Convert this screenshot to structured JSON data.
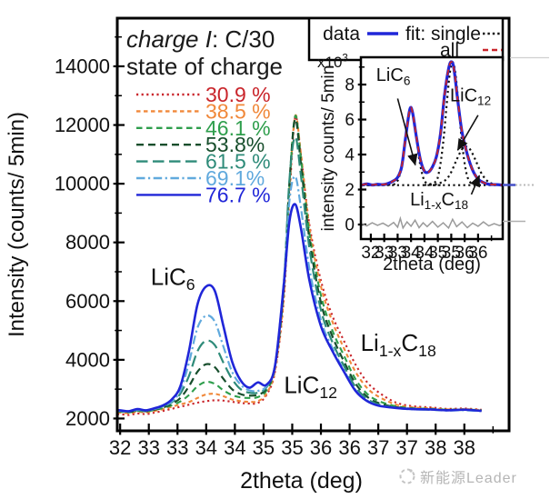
{
  "figure": {
    "watermark": {
      "logo": "dashed-circle-logo",
      "text": "新能源Leader",
      "color": "#b5b5b5"
    }
  },
  "chart_data": [
    {
      "id": "main",
      "type": "line",
      "xlabel": "2theta (deg)",
      "ylabel": "Intensity (counts/ 5min)",
      "xlim": [
        31.95,
        38.78
      ],
      "ylim": [
        1580,
        15640
      ],
      "xticks_major": [
        32,
        33,
        34,
        35,
        36,
        37,
        38
      ],
      "xtick_minor_step": 0.5,
      "yticks_major": [
        2000,
        4000,
        6000,
        8000,
        10000,
        12000,
        14000
      ],
      "ytick_minor_step": 1000,
      "grid": false,
      "legend_position": "top-left",
      "legend_title_line1": [
        {
          "t": "charge I",
          "italic": true
        },
        {
          "t": ": C/30"
        }
      ],
      "legend_title_line2": "state of charge",
      "x": [
        32.0,
        32.15,
        32.3,
        32.45,
        32.6,
        32.75,
        32.9,
        33.05,
        33.2,
        33.35,
        33.5,
        33.65,
        33.8,
        33.95,
        34.1,
        34.25,
        34.4,
        34.55,
        34.7,
        34.85,
        34.95,
        35.05,
        35.15,
        35.3,
        35.5,
        35.7,
        35.9,
        36.1,
        36.3,
        36.5,
        36.8,
        37.1,
        37.4,
        37.7,
        38.0,
        38.3
      ],
      "series": [
        {
          "name": "30.9 %",
          "soc_percent": 30.9,
          "color": "#c9252b",
          "dash": "dot",
          "width": 2.1,
          "y": [
            2150,
            2120,
            2170,
            2150,
            2200,
            2260,
            2330,
            2400,
            2470,
            2540,
            2590,
            2620,
            2610,
            2570,
            2530,
            2510,
            2530,
            2800,
            3600,
            6000,
            9500,
            12250,
            11000,
            8600,
            6700,
            5500,
            4650,
            3850,
            3250,
            2900,
            2550,
            2420,
            2380,
            2330,
            2340,
            2300
          ]
        },
        {
          "name": "38.5 %",
          "soc_percent": 38.5,
          "color": "#f0883a",
          "dash": "shortdash",
          "width": 2.1,
          "y": [
            2200,
            2180,
            2230,
            2210,
            2260,
            2320,
            2400,
            2480,
            2560,
            2700,
            2820,
            2840,
            2760,
            2650,
            2590,
            2570,
            2590,
            2850,
            3650,
            6100,
            9700,
            12300,
            11050,
            8500,
            6500,
            5300,
            4400,
            3600,
            3050,
            2750,
            2480,
            2380,
            2350,
            2310,
            2320,
            2290
          ]
        },
        {
          "name": "46.1 %",
          "soc_percent": 46.1,
          "color": "#2e9e4c",
          "dash": "dash",
          "width": 2.1,
          "y": [
            2230,
            2210,
            2260,
            2240,
            2290,
            2360,
            2450,
            2580,
            2800,
            3100,
            3250,
            3180,
            2960,
            2800,
            2720,
            2700,
            2730,
            2950,
            3750,
            6300,
            9900,
            12300,
            10900,
            8300,
            6200,
            5000,
            4150,
            3350,
            2850,
            2600,
            2420,
            2350,
            2330,
            2300,
            2310,
            2280
          ]
        },
        {
          "name": "53.8%",
          "soc_percent": 53.8,
          "color": "#174e2c",
          "dash": "dash2",
          "width": 2.2,
          "y": [
            2240,
            2220,
            2270,
            2250,
            2300,
            2380,
            2500,
            2700,
            3100,
            3600,
            3850,
            3750,
            3350,
            3000,
            2830,
            2780,
            2810,
            3020,
            3800,
            6400,
            10000,
            12200,
            10700,
            8100,
            5950,
            4800,
            3950,
            3200,
            2750,
            2530,
            2390,
            2330,
            2310,
            2290,
            2300,
            2270
          ]
        },
        {
          "name": "61.5 %",
          "soc_percent": 61.5,
          "color": "#2e8b79",
          "dash": "longdash",
          "width": 2.2,
          "y": [
            2250,
            2230,
            2280,
            2260,
            2320,
            2400,
            2550,
            2850,
            3450,
            4300,
            4650,
            4500,
            3900,
            3350,
            3000,
            2880,
            2880,
            3060,
            3800,
            6500,
            10100,
            11600,
            10300,
            7800,
            5700,
            4600,
            3800,
            3080,
            2680,
            2480,
            2370,
            2320,
            2300,
            2280,
            2290,
            2260
          ]
        },
        {
          "name": "69.1%",
          "soc_percent": 69.1,
          "color": "#60a9dd",
          "dash": "dashdot",
          "width": 2.2,
          "y": [
            2260,
            2240,
            2300,
            2270,
            2330,
            2420,
            2580,
            2950,
            3900,
            5100,
            5500,
            5300,
            4450,
            3600,
            3150,
            2960,
            2940,
            3100,
            3800,
            6600,
            9400,
            10250,
            9200,
            7100,
            5350,
            4400,
            3650,
            2980,
            2620,
            2450,
            2360,
            2310,
            2300,
            2270,
            2280,
            2250
          ]
        },
        {
          "name": "76.7 %",
          "soc_percent": 76.7,
          "color": "#2026d8",
          "dash": "solid",
          "width": 2.6,
          "y": [
            2280,
            2250,
            2320,
            2280,
            2350,
            2450,
            2650,
            3100,
            4300,
            5900,
            6500,
            6350,
            5150,
            3950,
            3300,
            3050,
            3230,
            3150,
            3800,
            6500,
            8700,
            9300,
            8500,
            6700,
            5150,
            4300,
            3600,
            2950,
            2600,
            2440,
            2360,
            2320,
            2310,
            2280,
            2300,
            2260
          ]
        }
      ],
      "annotations": [
        {
          "name": "label-LiC6",
          "segs": [
            {
              "t": "LiC"
            },
            {
              "t": "6",
              "sub": true
            }
          ],
          "x": 32.92,
          "y": 6550,
          "fs": 26
        },
        {
          "name": "label-LiC12",
          "segs": [
            {
              "t": "LiC"
            },
            {
              "t": "12",
              "sub": true
            }
          ],
          "x": 35.32,
          "y": 2870,
          "fs": 26
        },
        {
          "name": "label-Li1-xC18",
          "segs": [
            {
              "t": "Li"
            },
            {
              "t": "1-x",
              "sub": true
            },
            {
              "t": "C"
            },
            {
              "t": "18",
              "sub": true
            }
          ],
          "x": 36.85,
          "y": 4300,
          "fs": 26
        }
      ]
    },
    {
      "id": "inset",
      "type": "line",
      "scale_label": [
        {
          "t": "x10"
        },
        {
          "t": "3",
          "sup": true
        }
      ],
      "xlabel": "2theta (deg)",
      "ylabel": "intensity counts/ 5min",
      "xlim": [
        31.63,
        36.92
      ],
      "ylim": [
        -0.83,
        9.56
      ],
      "xticks_major": [
        32,
        33,
        34,
        35,
        36
      ],
      "xtick_minor_step": 0.5,
      "yticks_major": [
        0,
        2,
        4,
        6,
        8
      ],
      "ytick_minor_step": 1,
      "legend_entries": [
        {
          "label": "data",
          "color": "#2026d8",
          "dash": "solid"
        },
        {
          "label": "fit: single",
          "color": "#111111",
          "dash": "dot"
        },
        {
          "label": "all",
          "color": "#c9252b",
          "dash": "dash"
        }
      ],
      "x": [
        31.65,
        31.85,
        32.05,
        32.25,
        32.45,
        32.65,
        32.85,
        33.0,
        33.15,
        33.3,
        33.45,
        33.55,
        33.7,
        33.85,
        34.0,
        34.15,
        34.3,
        34.45,
        34.6,
        34.75,
        34.9,
        35.0,
        35.1,
        35.25,
        35.4,
        35.6,
        35.8,
        36.0,
        36.2,
        36.4,
        36.7,
        36.92
      ],
      "series": [
        {
          "name": "data",
          "color": "#2026d8",
          "dash": "solid",
          "width": 3.2,
          "y": [
            2.25,
            2.32,
            2.26,
            2.3,
            2.28,
            2.35,
            2.5,
            2.7,
            3.3,
            5.0,
            6.55,
            6.45,
            5.0,
            3.7,
            3.05,
            3.0,
            3.3,
            3.9,
            5.2,
            7.4,
            8.9,
            9.3,
            8.9,
            7.0,
            5.3,
            4.0,
            3.1,
            2.6,
            2.4,
            2.3,
            2.28,
            2.25
          ]
        },
        {
          "name": "fit: all",
          "color": "#c9252b",
          "dash": "dash",
          "width": 1.8,
          "y": [
            2.25,
            2.32,
            2.26,
            2.3,
            2.28,
            2.35,
            2.5,
            2.7,
            3.3,
            5.0,
            6.55,
            6.45,
            5.0,
            3.7,
            3.05,
            3.0,
            3.3,
            3.9,
            5.2,
            7.4,
            8.9,
            9.3,
            8.9,
            7.0,
            5.3,
            4.0,
            3.1,
            2.6,
            2.4,
            2.3,
            2.28,
            2.25
          ]
        }
      ],
      "fit_components": [
        {
          "name": "fit single LiC6",
          "color": "#111111",
          "dash": "dot",
          "width": 2.2,
          "points": [
            [
              31.7,
              2.25
            ],
            [
              32.3,
              2.25
            ],
            [
              32.7,
              2.27
            ],
            [
              32.9,
              2.33
            ],
            [
              33.05,
              2.7
            ],
            [
              33.2,
              3.8
            ],
            [
              33.35,
              5.6
            ],
            [
              33.5,
              6.58
            ],
            [
              33.65,
              5.6
            ],
            [
              33.8,
              3.8
            ],
            [
              33.95,
              2.7
            ],
            [
              34.1,
              2.33
            ],
            [
              34.3,
              2.26
            ],
            [
              34.6,
              2.25
            ]
          ]
        },
        {
          "name": "fit single LiC12",
          "color": "#111111",
          "dash": "dot",
          "width": 2.2,
          "points": [
            [
              34.0,
              2.25
            ],
            [
              34.4,
              2.43
            ],
            [
              34.55,
              3.05
            ],
            [
              34.7,
              4.7
            ],
            [
              34.85,
              7.2
            ],
            [
              34.95,
              8.7
            ],
            [
              35.05,
              9.28
            ],
            [
              35.15,
              8.7
            ],
            [
              35.25,
              7.2
            ],
            [
              35.4,
              4.7
            ],
            [
              35.55,
              3.05
            ],
            [
              35.7,
              2.43
            ],
            [
              35.9,
              2.28
            ],
            [
              36.2,
              2.25
            ]
          ]
        },
        {
          "name": "fit single Li1-xC18",
          "color": "#111111",
          "dash": "dot",
          "width": 2.2,
          "points": [
            [
              34.2,
              2.26
            ],
            [
              34.5,
              2.33
            ],
            [
              34.8,
              2.56
            ],
            [
              35.0,
              3.0
            ],
            [
              35.2,
              3.7
            ],
            [
              35.4,
              4.3
            ],
            [
              35.55,
              4.45
            ],
            [
              35.7,
              4.3
            ],
            [
              35.9,
              3.7
            ],
            [
              36.1,
              3.0
            ],
            [
              36.3,
              2.56
            ],
            [
              36.5,
              2.35
            ],
            [
              36.8,
              2.27
            ],
            [
              36.92,
              2.26
            ]
          ]
        },
        {
          "name": "fit baseline",
          "color": "#111111",
          "dash": "dot",
          "width": 2.2,
          "points": [
            [
              31.65,
              2.25
            ],
            [
              36.92,
              2.25
            ]
          ]
        }
      ],
      "residual": {
        "name": "residual",
        "color": "#9a9a9a",
        "width": 1.5,
        "points": [
          [
            31.65,
            0.05
          ],
          [
            31.85,
            -0.08
          ],
          [
            32.05,
            0.1
          ],
          [
            32.25,
            -0.05
          ],
          [
            32.45,
            0.08
          ],
          [
            32.65,
            -0.1
          ],
          [
            32.85,
            0.12
          ],
          [
            33.0,
            -0.15
          ],
          [
            33.1,
            0.35
          ],
          [
            33.2,
            -0.2
          ],
          [
            33.35,
            0.15
          ],
          [
            33.5,
            -0.1
          ],
          [
            33.65,
            0.25
          ],
          [
            33.8,
            -0.18
          ],
          [
            33.95,
            0.1
          ],
          [
            34.1,
            -0.12
          ],
          [
            34.3,
            0.18
          ],
          [
            34.5,
            -0.15
          ],
          [
            34.7,
            0.1
          ],
          [
            34.9,
            -0.2
          ],
          [
            35.05,
            0.3
          ],
          [
            35.2,
            -0.12
          ],
          [
            35.4,
            0.15
          ],
          [
            35.6,
            -0.18
          ],
          [
            35.8,
            0.08
          ],
          [
            36.0,
            -0.1
          ],
          [
            36.2,
            0.15
          ],
          [
            36.4,
            -0.08
          ],
          [
            36.6,
            0.05
          ],
          [
            36.8,
            -0.06
          ],
          [
            36.92,
            0.02
          ]
        ]
      },
      "annotations": [
        {
          "name": "inset-label-LiC6",
          "segs": [
            {
              "t": "LiC"
            },
            {
              "t": "6",
              "sub": true
            }
          ],
          "x": 32.2,
          "y": 8.2,
          "anchor": "start",
          "fs": 20,
          "arrow": [
            33.0,
            7.2,
            33.66,
            3.4
          ]
        },
        {
          "name": "inset-label-LiC12",
          "segs": [
            {
              "t": "LiC"
            },
            {
              "t": "12",
              "sub": true
            }
          ],
          "x": 35.72,
          "y": 7.05,
          "anchor": "middle",
          "fs": 20,
          "arrow": [
            36.0,
            6.25,
            35.24,
            4.25
          ]
        },
        {
          "name": "inset-label-Li1-xC18",
          "segs": [
            {
              "t": "Li"
            },
            {
              "t": "1-x",
              "sub": true
            },
            {
              "t": "C"
            },
            {
              "t": "18",
              "sub": true
            }
          ],
          "x": 34.55,
          "y": 1.1,
          "anchor": "middle",
          "fs": 20,
          "arrow": [
            35.75,
            1.72,
            36.05,
            2.8
          ]
        }
      ]
    }
  ]
}
